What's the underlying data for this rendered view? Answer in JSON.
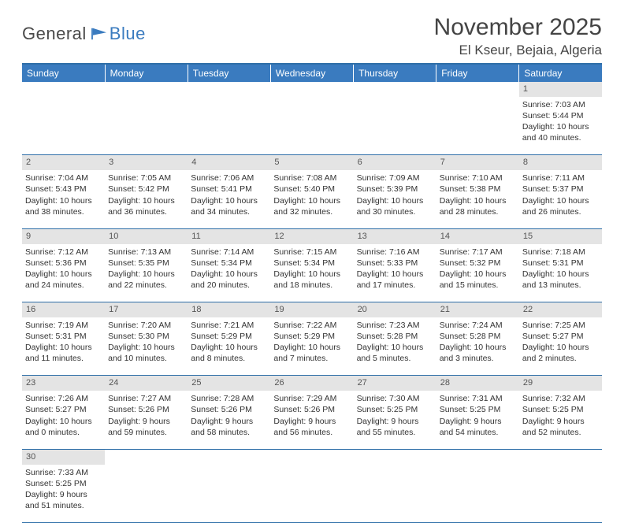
{
  "logo": {
    "general": "General",
    "blue": "Blue"
  },
  "title": "November 2025",
  "location": "El Kseur, Bejaia, Algeria",
  "colors": {
    "header_bg": "#3a7bbf",
    "border": "#2f6fa8",
    "daynum_bg": "#e4e4e4",
    "text": "#333333",
    "title_text": "#444444"
  },
  "weekdays": [
    "Sunday",
    "Monday",
    "Tuesday",
    "Wednesday",
    "Thursday",
    "Friday",
    "Saturday"
  ],
  "weeks": [
    {
      "days": [
        {
          "num": "",
          "lines": []
        },
        {
          "num": "",
          "lines": []
        },
        {
          "num": "",
          "lines": []
        },
        {
          "num": "",
          "lines": []
        },
        {
          "num": "",
          "lines": []
        },
        {
          "num": "",
          "lines": []
        },
        {
          "num": "1",
          "lines": [
            "Sunrise: 7:03 AM",
            "Sunset: 5:44 PM",
            "Daylight: 10 hours and 40 minutes."
          ]
        }
      ]
    },
    {
      "days": [
        {
          "num": "2",
          "lines": [
            "Sunrise: 7:04 AM",
            "Sunset: 5:43 PM",
            "Daylight: 10 hours and 38 minutes."
          ]
        },
        {
          "num": "3",
          "lines": [
            "Sunrise: 7:05 AM",
            "Sunset: 5:42 PM",
            "Daylight: 10 hours and 36 minutes."
          ]
        },
        {
          "num": "4",
          "lines": [
            "Sunrise: 7:06 AM",
            "Sunset: 5:41 PM",
            "Daylight: 10 hours and 34 minutes."
          ]
        },
        {
          "num": "5",
          "lines": [
            "Sunrise: 7:08 AM",
            "Sunset: 5:40 PM",
            "Daylight: 10 hours and 32 minutes."
          ]
        },
        {
          "num": "6",
          "lines": [
            "Sunrise: 7:09 AM",
            "Sunset: 5:39 PM",
            "Daylight: 10 hours and 30 minutes."
          ]
        },
        {
          "num": "7",
          "lines": [
            "Sunrise: 7:10 AM",
            "Sunset: 5:38 PM",
            "Daylight: 10 hours and 28 minutes."
          ]
        },
        {
          "num": "8",
          "lines": [
            "Sunrise: 7:11 AM",
            "Sunset: 5:37 PM",
            "Daylight: 10 hours and 26 minutes."
          ]
        }
      ]
    },
    {
      "days": [
        {
          "num": "9",
          "lines": [
            "Sunrise: 7:12 AM",
            "Sunset: 5:36 PM",
            "Daylight: 10 hours and 24 minutes."
          ]
        },
        {
          "num": "10",
          "lines": [
            "Sunrise: 7:13 AM",
            "Sunset: 5:35 PM",
            "Daylight: 10 hours and 22 minutes."
          ]
        },
        {
          "num": "11",
          "lines": [
            "Sunrise: 7:14 AM",
            "Sunset: 5:34 PM",
            "Daylight: 10 hours and 20 minutes."
          ]
        },
        {
          "num": "12",
          "lines": [
            "Sunrise: 7:15 AM",
            "Sunset: 5:34 PM",
            "Daylight: 10 hours and 18 minutes."
          ]
        },
        {
          "num": "13",
          "lines": [
            "Sunrise: 7:16 AM",
            "Sunset: 5:33 PM",
            "Daylight: 10 hours and 17 minutes."
          ]
        },
        {
          "num": "14",
          "lines": [
            "Sunrise: 7:17 AM",
            "Sunset: 5:32 PM",
            "Daylight: 10 hours and 15 minutes."
          ]
        },
        {
          "num": "15",
          "lines": [
            "Sunrise: 7:18 AM",
            "Sunset: 5:31 PM",
            "Daylight: 10 hours and 13 minutes."
          ]
        }
      ]
    },
    {
      "days": [
        {
          "num": "16",
          "lines": [
            "Sunrise: 7:19 AM",
            "Sunset: 5:31 PM",
            "Daylight: 10 hours and 11 minutes."
          ]
        },
        {
          "num": "17",
          "lines": [
            "Sunrise: 7:20 AM",
            "Sunset: 5:30 PM",
            "Daylight: 10 hours and 10 minutes."
          ]
        },
        {
          "num": "18",
          "lines": [
            "Sunrise: 7:21 AM",
            "Sunset: 5:29 PM",
            "Daylight: 10 hours and 8 minutes."
          ]
        },
        {
          "num": "19",
          "lines": [
            "Sunrise: 7:22 AM",
            "Sunset: 5:29 PM",
            "Daylight: 10 hours and 7 minutes."
          ]
        },
        {
          "num": "20",
          "lines": [
            "Sunrise: 7:23 AM",
            "Sunset: 5:28 PM",
            "Daylight: 10 hours and 5 minutes."
          ]
        },
        {
          "num": "21",
          "lines": [
            "Sunrise: 7:24 AM",
            "Sunset: 5:28 PM",
            "Daylight: 10 hours and 3 minutes."
          ]
        },
        {
          "num": "22",
          "lines": [
            "Sunrise: 7:25 AM",
            "Sunset: 5:27 PM",
            "Daylight: 10 hours and 2 minutes."
          ]
        }
      ]
    },
    {
      "days": [
        {
          "num": "23",
          "lines": [
            "Sunrise: 7:26 AM",
            "Sunset: 5:27 PM",
            "Daylight: 10 hours and 0 minutes."
          ]
        },
        {
          "num": "24",
          "lines": [
            "Sunrise: 7:27 AM",
            "Sunset: 5:26 PM",
            "Daylight: 9 hours and 59 minutes."
          ]
        },
        {
          "num": "25",
          "lines": [
            "Sunrise: 7:28 AM",
            "Sunset: 5:26 PM",
            "Daylight: 9 hours and 58 minutes."
          ]
        },
        {
          "num": "26",
          "lines": [
            "Sunrise: 7:29 AM",
            "Sunset: 5:26 PM",
            "Daylight: 9 hours and 56 minutes."
          ]
        },
        {
          "num": "27",
          "lines": [
            "Sunrise: 7:30 AM",
            "Sunset: 5:25 PM",
            "Daylight: 9 hours and 55 minutes."
          ]
        },
        {
          "num": "28",
          "lines": [
            "Sunrise: 7:31 AM",
            "Sunset: 5:25 PM",
            "Daylight: 9 hours and 54 minutes."
          ]
        },
        {
          "num": "29",
          "lines": [
            "Sunrise: 7:32 AM",
            "Sunset: 5:25 PM",
            "Daylight: 9 hours and 52 minutes."
          ]
        }
      ]
    },
    {
      "days": [
        {
          "num": "30",
          "lines": [
            "Sunrise: 7:33 AM",
            "Sunset: 5:25 PM",
            "Daylight: 9 hours and 51 minutes."
          ]
        },
        {
          "num": "",
          "lines": []
        },
        {
          "num": "",
          "lines": []
        },
        {
          "num": "",
          "lines": []
        },
        {
          "num": "",
          "lines": []
        },
        {
          "num": "",
          "lines": []
        },
        {
          "num": "",
          "lines": []
        }
      ]
    }
  ]
}
